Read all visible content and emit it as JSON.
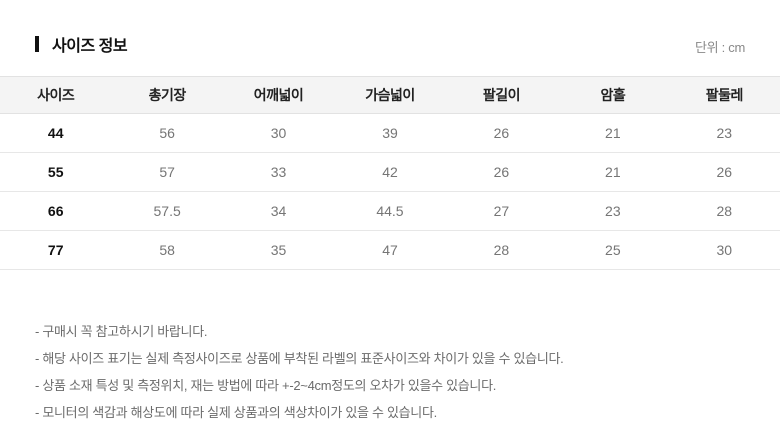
{
  "page": {
    "title": "사이즈 정보",
    "unit_label": "단위 : cm"
  },
  "table": {
    "headers": [
      "사이즈",
      "총기장",
      "어깨넓이",
      "가슴넓이",
      "팔길이",
      "암홀",
      "팔둘레"
    ],
    "rows": [
      {
        "size": "44",
        "values": [
          "56",
          "30",
          "39",
          "26",
          "21",
          "23"
        ]
      },
      {
        "size": "55",
        "values": [
          "57",
          "33",
          "42",
          "26",
          "21",
          "26"
        ]
      },
      {
        "size": "66",
        "values": [
          "57.5",
          "34",
          "44.5",
          "27",
          "23",
          "28"
        ]
      },
      {
        "size": "77",
        "values": [
          "58",
          "35",
          "47",
          "28",
          "25",
          "30"
        ]
      }
    ]
  },
  "notes": [
    "- 구매시 꼭 참고하시기 바랍니다.",
    "- 해당 사이즈 표기는 실제 측정사이즈로 상품에 부착된 라벨의 표준사이즈와 차이가 있을 수 있습니다.",
    "- 상품 소재 특성 및 측정위치, 재는 방법에 따라 +-2~4cm정도의 오차가 있을수 있습니다.",
    "- 모니터의 색감과 해상도에 따라 실제 상품과의 색상차이가 있을 수 있습니다."
  ],
  "colors": {
    "header_background": "#f4f4f4",
    "border": "#e2e2e2",
    "title_text": "#111111",
    "value_text": "#757575",
    "note_text": "#6b6b6b"
  }
}
